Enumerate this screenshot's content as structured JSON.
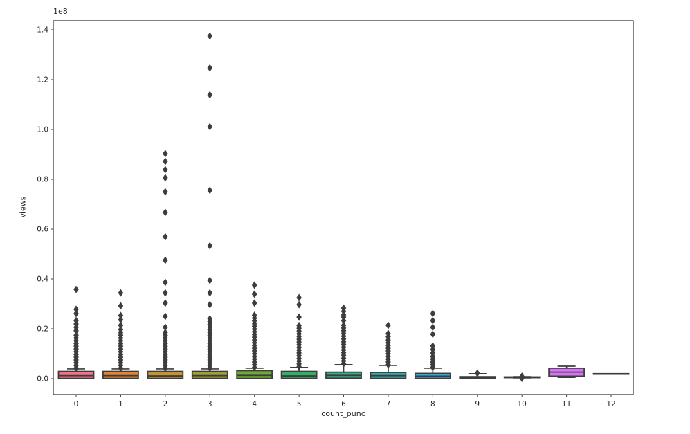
{
  "figure": {
    "xlabel": "count_punc",
    "ylabel": "views",
    "offset_text": "1e8",
    "background": "#ffffff",
    "text_color": "#262626",
    "line_color": "#3d3d3d"
  },
  "chart_data": {
    "type": "boxplot",
    "title": "",
    "xlabel": "count_punc",
    "ylabel": "views",
    "unit_note": "all values in units of 1e8 views (axis offset text '1e8')",
    "grid": false,
    "legend": null,
    "x_tick_labels": [
      "0",
      "1",
      "2",
      "3",
      "4",
      "5",
      "6",
      "7",
      "8",
      "9",
      "10",
      "11",
      "12"
    ],
    "y_tick_values": [
      0.0,
      0.2,
      0.4,
      0.6,
      0.8,
      1.0,
      1.2,
      1.4
    ],
    "y_tick_labels": [
      "0.0",
      "0.2",
      "0.4",
      "0.6",
      "0.8",
      "1.0",
      "1.2",
      "1.4"
    ],
    "ylim": [
      -0.064,
      1.436
    ],
    "categories": [
      {
        "label": "0",
        "color": "#f77189",
        "q1": 0.001,
        "median": 0.012,
        "q3": 0.029,
        "whisker_low": 0.001,
        "whisker_high": 0.039,
        "dense_outliers": [
          0.042,
          0.18
        ],
        "outliers": [
          0.192,
          0.206,
          0.219,
          0.233,
          0.261,
          0.278,
          0.358
        ]
      },
      {
        "label": "1",
        "color": "#e68332",
        "q1": 0.001,
        "median": 0.012,
        "q3": 0.029,
        "whisker_low": 0.001,
        "whisker_high": 0.039,
        "dense_outliers": [
          0.042,
          0.185
        ],
        "outliers": [
          0.197,
          0.214,
          0.236,
          0.253,
          0.292,
          0.344
        ]
      },
      {
        "label": "2",
        "color": "#c39532",
        "q1": 0.001,
        "median": 0.011,
        "q3": 0.029,
        "whisker_low": 0.001,
        "whisker_high": 0.039,
        "dense_outliers": [
          0.042,
          0.195
        ],
        "outliers": [
          0.206,
          0.25,
          0.303,
          0.344,
          0.386,
          0.475,
          0.569,
          0.667,
          0.75,
          0.806,
          0.839,
          0.872,
          0.903
        ]
      },
      {
        "label": "3",
        "color": "#9da131",
        "q1": 0.001,
        "median": 0.012,
        "q3": 0.029,
        "whisker_low": 0.001,
        "whisker_high": 0.039,
        "dense_outliers": [
          0.042,
          0.25
        ],
        "outliers": [
          0.297,
          0.344,
          0.394,
          0.533,
          0.756,
          1.011,
          1.139,
          1.247,
          1.375
        ]
      },
      {
        "label": "4",
        "color": "#6fab31",
        "q1": 0.001,
        "median": 0.013,
        "q3": 0.032,
        "whisker_low": 0.001,
        "whisker_high": 0.042,
        "dense_outliers": [
          0.045,
          0.26
        ],
        "outliers": [
          0.303,
          0.339,
          0.375
        ]
      },
      {
        "label": "5",
        "color": "#32b166",
        "q1": 0.001,
        "median": 0.011,
        "q3": 0.029,
        "whisker_low": 0.001,
        "whisker_high": 0.045,
        "dense_outliers": [
          0.048,
          0.215
        ],
        "outliers": [
          0.247,
          0.297,
          0.325
        ]
      },
      {
        "label": "6",
        "color": "#34ae8d",
        "q1": 0.002,
        "median": 0.013,
        "q3": 0.026,
        "whisker_low": 0.002,
        "whisker_high": 0.056,
        "dense_outliers": [
          0.06,
          0.22
        ],
        "outliers": [
          0.233,
          0.247,
          0.256,
          0.27,
          0.283
        ]
      },
      {
        "label": "7",
        "color": "#36abae",
        "q1": 0.001,
        "median": 0.012,
        "q3": 0.025,
        "whisker_low": 0.001,
        "whisker_high": 0.053,
        "dense_outliers": [
          0.056,
          0.155
        ],
        "outliers": [
          0.168,
          0.181,
          0.214
        ]
      },
      {
        "label": "8",
        "color": "#38a7d4",
        "q1": 0.001,
        "median": 0.01,
        "q3": 0.021,
        "whisker_low": 0.001,
        "whisker_high": 0.042,
        "dense_outliers": [
          0.045,
          0.095
        ],
        "outliers": [
          0.103,
          0.117,
          0.131,
          0.178,
          0.206,
          0.233,
          0.261
        ]
      },
      {
        "label": "9",
        "color": "#3aa5ec",
        "q1": 0.0,
        "median": 0.004,
        "q3": 0.008,
        "whisker_low": 0.0,
        "whisker_high": 0.02,
        "dense_outliers": null,
        "outliers": [
          0.022
        ]
      },
      {
        "label": "10",
        "color": "#8e8df4",
        "q1": 0.004,
        "median": 0.0055,
        "q3": 0.007,
        "whisker_low": 0.003,
        "whisker_high": 0.008,
        "dense_outliers": null,
        "outliers": [
          0.0055
        ]
      },
      {
        "label": "11",
        "color": "#d675f4",
        "q1": 0.01,
        "median": 0.026,
        "q3": 0.042,
        "whisker_low": 0.005,
        "whisker_high": 0.05,
        "dense_outliers": null,
        "outliers": []
      },
      {
        "label": "12",
        "color": "#f763cf",
        "q1": 0.018,
        "median": 0.019,
        "q3": 0.02,
        "whisker_low": 0.019,
        "whisker_high": 0.019,
        "dense_outliers": null,
        "outliers": []
      }
    ]
  }
}
